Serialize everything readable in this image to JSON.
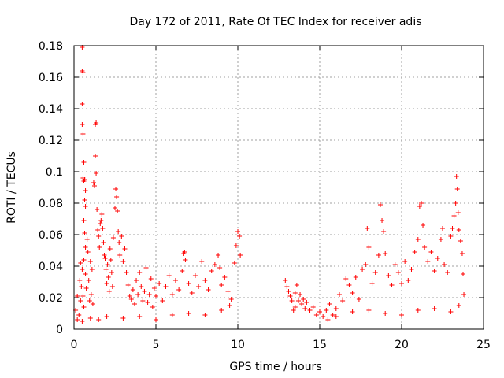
{
  "chart_data": {
    "type": "scatter",
    "title": "Day 172 of 2011, Rate Of TEC Index for receiver adis",
    "xlabel": "GPS time / hours",
    "ylabel": "ROTI / TECUs",
    "xlim": [
      0,
      25
    ],
    "ylim": [
      0,
      0.18
    ],
    "x_ticks": [
      0,
      5,
      10,
      15,
      20,
      25
    ],
    "x_tick_labels": [
      "0",
      "5",
      "10",
      "15",
      "20",
      "25"
    ],
    "y_ticks": [
      0,
      0.02,
      0.04,
      0.06,
      0.08,
      0.1,
      0.12,
      0.14,
      0.16,
      0.18
    ],
    "y_tick_labels": [
      "0",
      "0.02",
      "0.04",
      "0.06",
      "0.08",
      "0.1",
      "0.12",
      "0.14",
      "0.16",
      "0.18"
    ],
    "grid": true,
    "marker": "plus",
    "color": "#ff0000",
    "series": [
      {
        "points": [
          [
            0.1,
            0.012
          ],
          [
            0.2,
            0.021
          ],
          [
            0.3,
            0.009
          ],
          [
            0.35,
            0.031
          ],
          [
            0.4,
            0.018
          ],
          [
            0.45,
            0.027
          ],
          [
            0.5,
            0.179
          ],
          [
            0.5,
            0.164
          ],
          [
            0.55,
            0.163
          ],
          [
            0.5,
            0.143
          ],
          [
            0.5,
            0.13
          ],
          [
            0.55,
            0.124
          ],
          [
            0.6,
            0.106
          ],
          [
            0.55,
            0.096
          ],
          [
            0.6,
            0.094
          ],
          [
            0.65,
            0.095
          ],
          [
            0.7,
            0.088
          ],
          [
            0.65,
            0.082
          ],
          [
            0.7,
            0.078
          ],
          [
            0.6,
            0.069
          ],
          [
            0.65,
            0.061
          ],
          [
            0.7,
            0.052
          ],
          [
            0.6,
            0.044
          ],
          [
            0.5,
            0.038
          ],
          [
            0.4,
            0.042
          ],
          [
            0.55,
            0.021
          ],
          [
            0.6,
            0.014
          ],
          [
            0.7,
            0.035
          ],
          [
            0.75,
            0.026
          ],
          [
            0.8,
            0.057
          ],
          [
            0.85,
            0.049
          ],
          [
            0.9,
            0.031
          ],
          [
            0.95,
            0.018
          ],
          [
            1.0,
            0.043
          ],
          [
            1.05,
            0.022
          ],
          [
            1.1,
            0.038
          ],
          [
            1.15,
            0.016
          ],
          [
            1.2,
            0.093
          ],
          [
            1.25,
            0.091
          ],
          [
            1.3,
            0.13
          ],
          [
            1.35,
            0.131
          ],
          [
            1.3,
            0.11
          ],
          [
            1.35,
            0.099
          ],
          [
            1.4,
            0.076
          ],
          [
            1.45,
            0.063
          ],
          [
            1.5,
            0.059
          ],
          [
            1.55,
            0.052
          ],
          [
            1.6,
            0.067
          ],
          [
            1.65,
            0.069
          ],
          [
            1.7,
            0.073
          ],
          [
            1.75,
            0.064
          ],
          [
            1.8,
            0.055
          ],
          [
            1.85,
            0.047
          ],
          [
            1.9,
            0.045
          ],
          [
            1.95,
            0.038
          ],
          [
            2.0,
            0.029
          ],
          [
            2.05,
            0.041
          ],
          [
            2.1,
            0.033
          ],
          [
            2.15,
            0.024
          ],
          [
            2.2,
            0.051
          ],
          [
            2.25,
            0.044
          ],
          [
            2.3,
            0.036
          ],
          [
            2.35,
            0.027
          ],
          [
            2.4,
            0.058
          ],
          [
            2.5,
            0.077
          ],
          [
            2.55,
            0.089
          ],
          [
            2.6,
            0.084
          ],
          [
            2.65,
            0.075
          ],
          [
            2.7,
            0.062
          ],
          [
            2.75,
            0.055
          ],
          [
            2.8,
            0.047
          ],
          [
            2.9,
            0.059
          ],
          [
            3.0,
            0.043
          ],
          [
            3.1,
            0.051
          ],
          [
            3.2,
            0.036
          ],
          [
            3.3,
            0.028
          ],
          [
            3.4,
            0.021
          ],
          [
            3.5,
            0.019
          ],
          [
            3.6,
            0.025
          ],
          [
            3.7,
            0.016
          ],
          [
            3.8,
            0.031
          ],
          [
            3.9,
            0.022
          ],
          [
            4.0,
            0.036
          ],
          [
            4.1,
            0.027
          ],
          [
            4.2,
            0.018
          ],
          [
            4.3,
            0.024
          ],
          [
            4.4,
            0.039
          ],
          [
            4.5,
            0.017
          ],
          [
            4.6,
            0.022
          ],
          [
            4.7,
            0.032
          ],
          [
            4.8,
            0.014
          ],
          [
            4.9,
            0.026
          ],
          [
            5.0,
            0.021
          ],
          [
            5.2,
            0.029
          ],
          [
            5.4,
            0.018
          ],
          [
            5.6,
            0.027
          ],
          [
            5.8,
            0.034
          ],
          [
            6.0,
            0.022
          ],
          [
            6.2,
            0.031
          ],
          [
            6.4,
            0.025
          ],
          [
            6.6,
            0.037
          ],
          [
            6.7,
            0.048
          ],
          [
            6.75,
            0.049
          ],
          [
            6.8,
            0.044
          ],
          [
            7.0,
            0.029
          ],
          [
            7.2,
            0.023
          ],
          [
            7.4,
            0.034
          ],
          [
            7.6,
            0.027
          ],
          [
            7.8,
            0.043
          ],
          [
            8.0,
            0.031
          ],
          [
            8.2,
            0.025
          ],
          [
            8.4,
            0.037
          ],
          [
            8.6,
            0.041
          ],
          [
            8.8,
            0.047
          ],
          [
            8.9,
            0.039
          ],
          [
            9.0,
            0.028
          ],
          [
            9.2,
            0.033
          ],
          [
            9.4,
            0.024
          ],
          [
            9.6,
            0.019
          ],
          [
            9.8,
            0.042
          ],
          [
            9.9,
            0.053
          ],
          [
            10.0,
            0.062
          ],
          [
            10.1,
            0.059
          ],
          [
            10.15,
            0.047
          ],
          [
            0.2,
            0.006
          ],
          [
            0.5,
            0.005
          ],
          [
            1.0,
            0.007
          ],
          [
            1.5,
            0.006
          ],
          [
            2.0,
            0.008
          ],
          [
            3.0,
            0.007
          ],
          [
            4.0,
            0.008
          ],
          [
            5.0,
            0.006
          ],
          [
            6.0,
            0.009
          ],
          [
            7.0,
            0.01
          ],
          [
            8.0,
            0.009
          ],
          [
            9.0,
            0.012
          ],
          [
            9.5,
            0.015
          ],
          [
            12.9,
            0.031
          ],
          [
            13.0,
            0.027
          ],
          [
            13.1,
            0.024
          ],
          [
            13.2,
            0.021
          ],
          [
            13.3,
            0.018
          ],
          [
            13.4,
            0.012
          ],
          [
            13.5,
            0.023
          ],
          [
            13.6,
            0.028
          ],
          [
            13.7,
            0.018
          ],
          [
            13.8,
            0.022
          ],
          [
            13.9,
            0.016
          ],
          [
            14.0,
            0.019
          ],
          [
            14.1,
            0.013
          ],
          [
            14.2,
            0.017
          ],
          [
            14.4,
            0.012
          ],
          [
            14.6,
            0.014
          ],
          [
            14.8,
            0.009
          ],
          [
            15.0,
            0.011
          ],
          [
            15.2,
            0.008
          ],
          [
            15.4,
            0.012
          ],
          [
            15.5,
            0.006
          ],
          [
            15.6,
            0.016
          ],
          [
            15.8,
            0.009
          ],
          [
            16.0,
            0.013
          ],
          [
            16.2,
            0.022
          ],
          [
            16.4,
            0.018
          ],
          [
            16.6,
            0.032
          ],
          [
            16.8,
            0.028
          ],
          [
            17.0,
            0.023
          ],
          [
            17.2,
            0.033
          ],
          [
            17.4,
            0.019
          ],
          [
            17.6,
            0.038
          ],
          [
            17.8,
            0.041
          ],
          [
            17.9,
            0.064
          ],
          [
            18.0,
            0.052
          ],
          [
            18.2,
            0.029
          ],
          [
            18.4,
            0.036
          ],
          [
            18.6,
            0.047
          ],
          [
            18.7,
            0.079
          ],
          [
            18.8,
            0.069
          ],
          [
            18.9,
            0.062
          ],
          [
            19.0,
            0.048
          ],
          [
            19.2,
            0.034
          ],
          [
            19.4,
            0.028
          ],
          [
            19.6,
            0.041
          ],
          [
            19.8,
            0.036
          ],
          [
            20.0,
            0.029
          ],
          [
            20.2,
            0.043
          ],
          [
            20.4,
            0.031
          ],
          [
            20.6,
            0.038
          ],
          [
            20.8,
            0.049
          ],
          [
            21.0,
            0.057
          ],
          [
            21.1,
            0.078
          ],
          [
            21.2,
            0.08
          ],
          [
            21.3,
            0.066
          ],
          [
            21.4,
            0.052
          ],
          [
            21.6,
            0.043
          ],
          [
            21.8,
            0.049
          ],
          [
            22.0,
            0.037
          ],
          [
            22.2,
            0.045
          ],
          [
            22.4,
            0.057
          ],
          [
            22.5,
            0.064
          ],
          [
            22.6,
            0.041
          ],
          [
            22.8,
            0.036
          ],
          [
            23.0,
            0.059
          ],
          [
            23.1,
            0.064
          ],
          [
            23.2,
            0.072
          ],
          [
            23.3,
            0.08
          ],
          [
            23.35,
            0.097
          ],
          [
            23.4,
            0.089
          ],
          [
            23.45,
            0.074
          ],
          [
            23.5,
            0.063
          ],
          [
            23.6,
            0.056
          ],
          [
            23.7,
            0.048
          ],
          [
            23.75,
            0.035
          ],
          [
            23.8,
            0.022
          ],
          [
            13.5,
            0.014
          ],
          [
            16.0,
            0.008
          ],
          [
            17.0,
            0.011
          ],
          [
            18.0,
            0.012
          ],
          [
            19.0,
            0.01
          ],
          [
            20.0,
            0.009
          ],
          [
            21.0,
            0.012
          ],
          [
            22.0,
            0.013
          ],
          [
            23.0,
            0.011
          ],
          [
            23.5,
            0.015
          ]
        ]
      }
    ]
  }
}
